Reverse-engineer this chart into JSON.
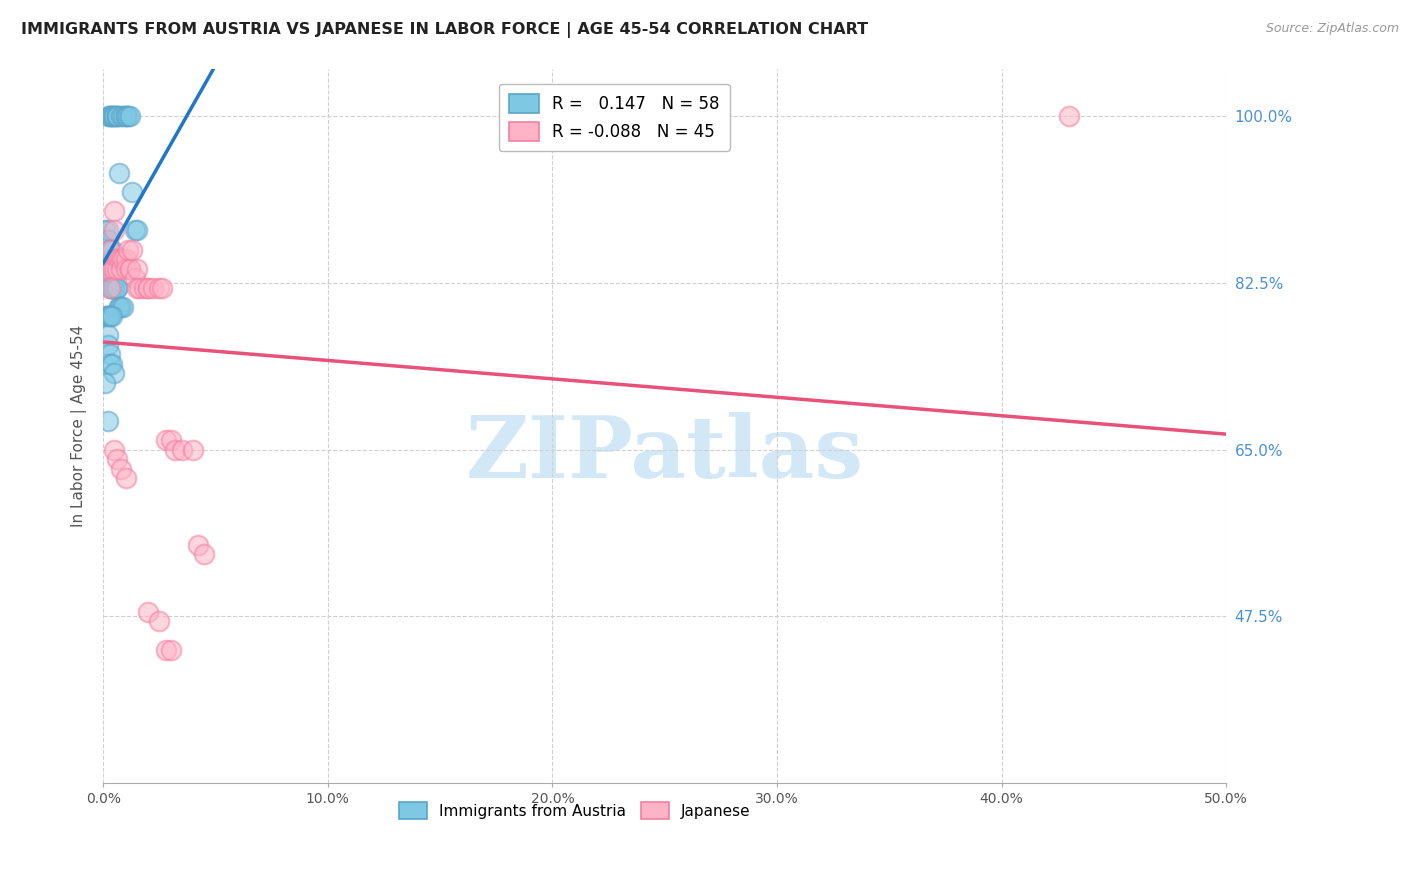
{
  "title": "IMMIGRANTS FROM AUSTRIA VS JAPANESE IN LABOR FORCE | AGE 45-54 CORRELATION CHART",
  "source_text": "Source: ZipAtlas.com",
  "ylabel": "In Labor Force | Age 45-54",
  "right_ytick_labels": [
    "100.0%",
    "82.5%",
    "65.0%",
    "47.5%"
  ],
  "right_ytick_vals": [
    1.0,
    0.825,
    0.65,
    0.475
  ],
  "xlim": [
    0.0,
    0.5
  ],
  "ylim": [
    0.3,
    1.05
  ],
  "austria_R": 0.147,
  "austria_N": 58,
  "japanese_R": -0.088,
  "japanese_N": 45,
  "legend_label_austria": "Immigrants from Austria",
  "legend_label_japanese": "Japanese",
  "austria_color": "#7ec8e3",
  "austria_edge_color": "#5ba3c9",
  "japanese_color": "#ffb3c6",
  "japanese_edge_color": "#f47fa0",
  "trendline_austria_color": "#2176c7",
  "trendline_japanese_color": "#e8517a",
  "background_color": "#ffffff",
  "grid_color": "#d0d0d0",
  "title_color": "#222222",
  "right_axis_color": "#4a90d9",
  "watermark_color": "#cce4f5",
  "austria_x": [
    0.002,
    0.003,
    0.003,
    0.004,
    0.004,
    0.005,
    0.005,
    0.006,
    0.006,
    0.006,
    0.007,
    0.008,
    0.009,
    0.01,
    0.01,
    0.011,
    0.012,
    0.013,
    0.014,
    0.015,
    0.001,
    0.002,
    0.002,
    0.003,
    0.003,
    0.004,
    0.004,
    0.005,
    0.002,
    0.002,
    0.003,
    0.003,
    0.003,
    0.004,
    0.004,
    0.004,
    0.005,
    0.005,
    0.006,
    0.006,
    0.007,
    0.007,
    0.008,
    0.009,
    0.001,
    0.002,
    0.002,
    0.003,
    0.003,
    0.004,
    0.002,
    0.002,
    0.003,
    0.003,
    0.004,
    0.005,
    0.001,
    0.002
  ],
  "austria_y": [
    1.0,
    1.0,
    1.0,
    1.0,
    1.0,
    1.0,
    1.0,
    1.0,
    1.0,
    1.0,
    0.94,
    1.0,
    1.0,
    1.0,
    1.0,
    1.0,
    1.0,
    0.92,
    0.88,
    0.88,
    0.88,
    0.88,
    0.87,
    0.86,
    0.86,
    0.86,
    0.85,
    0.85,
    0.84,
    0.83,
    0.83,
    0.83,
    0.82,
    0.82,
    0.82,
    0.82,
    0.82,
    0.82,
    0.82,
    0.82,
    0.8,
    0.8,
    0.8,
    0.8,
    0.79,
    0.79,
    0.79,
    0.79,
    0.79,
    0.79,
    0.77,
    0.76,
    0.75,
    0.74,
    0.74,
    0.73,
    0.72,
    0.68
  ],
  "japanese_x": [
    0.002,
    0.003,
    0.004,
    0.005,
    0.005,
    0.005,
    0.006,
    0.006,
    0.007,
    0.008,
    0.008,
    0.009,
    0.01,
    0.01,
    0.011,
    0.012,
    0.012,
    0.013,
    0.014,
    0.015,
    0.015,
    0.016,
    0.018,
    0.02,
    0.02,
    0.022,
    0.025,
    0.026,
    0.028,
    0.03,
    0.032,
    0.035,
    0.04,
    0.042,
    0.045,
    0.003,
    0.005,
    0.006,
    0.008,
    0.01,
    0.02,
    0.025,
    0.028,
    0.03,
    0.43
  ],
  "japanese_y": [
    0.84,
    0.86,
    0.84,
    0.9,
    0.88,
    0.84,
    0.85,
    0.84,
    0.85,
    0.85,
    0.84,
    0.85,
    0.85,
    0.84,
    0.86,
    0.84,
    0.84,
    0.86,
    0.83,
    0.84,
    0.82,
    0.82,
    0.82,
    0.82,
    0.82,
    0.82,
    0.82,
    0.82,
    0.66,
    0.66,
    0.65,
    0.65,
    0.65,
    0.55,
    0.54,
    0.82,
    0.65,
    0.64,
    0.63,
    0.62,
    0.48,
    0.47,
    0.44,
    0.44,
    1.0
  ]
}
